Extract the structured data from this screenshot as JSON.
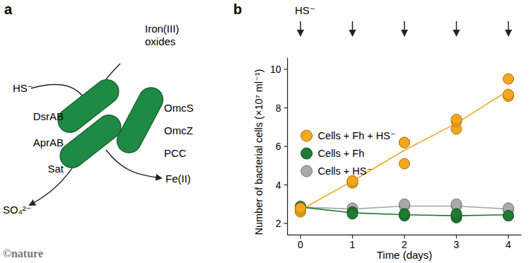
{
  "chart_data": {
    "type": "line",
    "panel": "b",
    "x_label": "Time (days)",
    "y_label": "Number of bacterial cells (×10⁷ ml⁻¹)",
    "x": [
      0,
      1,
      2,
      3,
      4
    ],
    "xlim": [
      -0.25,
      4.25
    ],
    "xticks": [
      0,
      1,
      2,
      3,
      4
    ],
    "ylim": [
      1.4,
      10.6
    ],
    "yticks": [
      2,
      4,
      6,
      8,
      10
    ],
    "grid": false,
    "legend": "top-left",
    "marker": "circle",
    "annotation": "HS⁻",
    "hs_additions": [
      0,
      1,
      2,
      3,
      4
    ],
    "series": [
      {
        "name": "Cells + Fh + HS⁻",
        "color": "#f4a71d",
        "values": [
          2.7,
          4.2,
          5.8,
          7.2,
          8.9
        ],
        "points": [
          [
            2.6,
            2.7,
            2.8
          ],
          [
            4.1,
            4.2,
            4.2
          ],
          [
            5.1,
            6.2,
            6.2
          ],
          [
            6.9,
            7.3,
            7.4
          ],
          [
            8.6,
            8.7,
            9.5
          ]
        ]
      },
      {
        "name": "Cells + Fh",
        "color": "#1f7a34",
        "values": [
          2.85,
          2.55,
          2.45,
          2.4,
          2.45
        ],
        "points": [
          [
            2.85
          ],
          [
            2.6,
            2.5
          ],
          [
            2.4,
            2.5
          ],
          [
            2.3,
            2.4,
            2.5
          ],
          [
            2.4,
            2.4
          ]
        ]
      },
      {
        "name": "Cells + HS⁻",
        "color": "#a9a9a9",
        "values": [
          2.85,
          2.75,
          2.9,
          2.9,
          2.75
        ],
        "points": [
          [
            2.8,
            2.9
          ],
          [
            2.6,
            2.8
          ],
          [
            2.9,
            3.0
          ],
          [
            2.9,
            3.0
          ],
          [
            2.7,
            2.8
          ]
        ]
      }
    ]
  },
  "diagram": {
    "panel": "a",
    "input_left": "HS⁻",
    "input_right": [
      "Iron(III)",
      "oxides"
    ],
    "left_proteins": [
      "DsrAB",
      "AprAB",
      "Sat"
    ],
    "right_proteins": [
      "OmcS",
      "OmcZ",
      "PCC"
    ],
    "output_left": "SO₄²⁻",
    "output_right": "Fe(II)"
  },
  "credit": "©nature"
}
